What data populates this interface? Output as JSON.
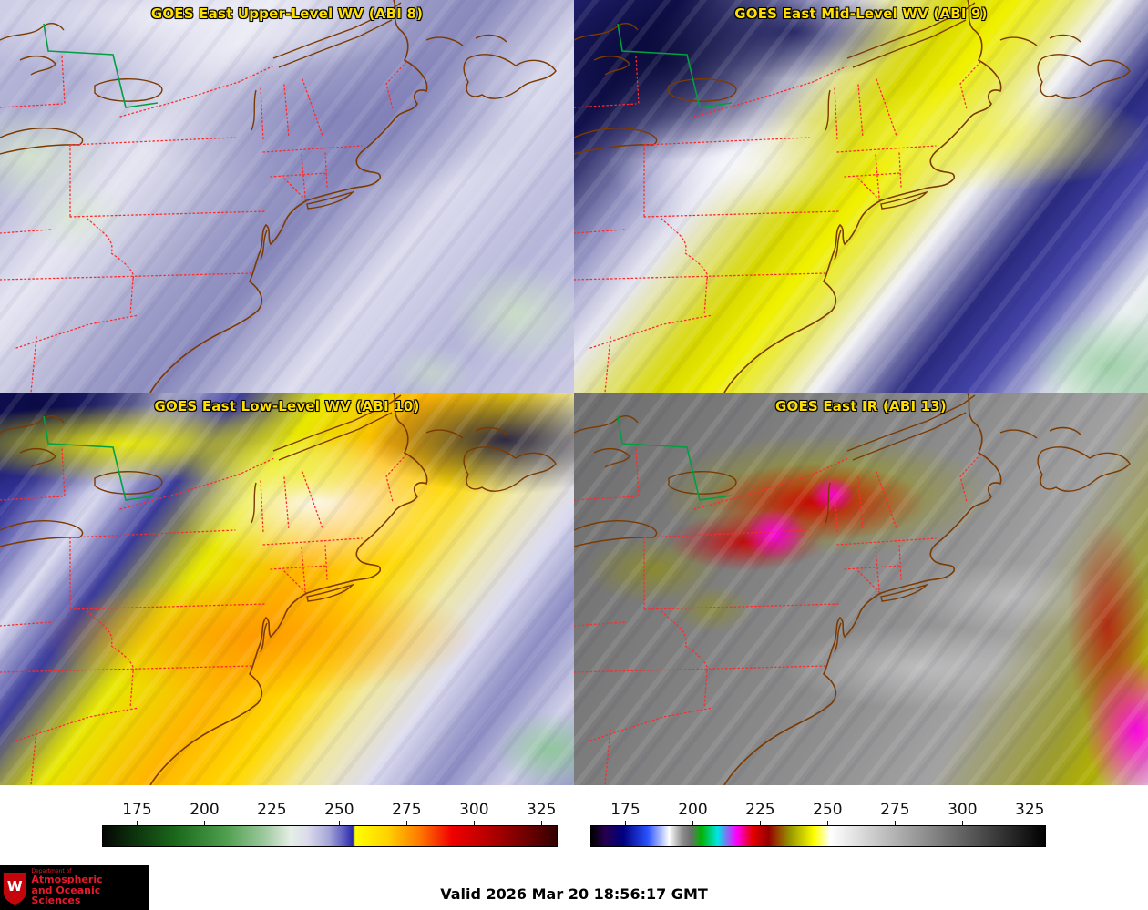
{
  "panels": [
    {
      "title": "GOES East Upper-Level WV (ABI 8)"
    },
    {
      "title": "GOES East Mid-Level WV (ABI 9)"
    },
    {
      "title": "GOES East Low-Level WV (ABI 10)"
    },
    {
      "title": "GOES East IR (ABI 13)"
    }
  ],
  "colorbars": [
    {
      "name": "water-vapor-enhancement",
      "range": [
        162,
        331
      ],
      "ticks": [
        175,
        200,
        225,
        250,
        275,
        300,
        325
      ],
      "stops": [
        {
          "v": 162,
          "c": "#050505"
        },
        {
          "v": 172,
          "c": "#0b2d0b"
        },
        {
          "v": 190,
          "c": "#1d6b1d"
        },
        {
          "v": 208,
          "c": "#4f9f4f"
        },
        {
          "v": 222,
          "c": "#9cc89c"
        },
        {
          "v": 232,
          "c": "#e6eee6"
        },
        {
          "v": 238,
          "c": "#dcdcec"
        },
        {
          "v": 246,
          "c": "#a8a8d8"
        },
        {
          "v": 252,
          "c": "#5858c0"
        },
        {
          "v": 255,
          "c": "#2828a8"
        },
        {
          "v": 256,
          "c": "#ffff00"
        },
        {
          "v": 268,
          "c": "#ffd200"
        },
        {
          "v": 280,
          "c": "#ff7800"
        },
        {
          "v": 292,
          "c": "#f00000"
        },
        {
          "v": 306,
          "c": "#b40000"
        },
        {
          "v": 320,
          "c": "#6e0000"
        },
        {
          "v": 331,
          "c": "#320000"
        }
      ]
    },
    {
      "name": "ir-enhancement",
      "range": [
        162,
        331
      ],
      "ticks": [
        175,
        200,
        225,
        250,
        275,
        300,
        325
      ],
      "stops": [
        {
          "v": 162,
          "c": "#000000"
        },
        {
          "v": 167,
          "c": "#26004d"
        },
        {
          "v": 174,
          "c": "#000080"
        },
        {
          "v": 183,
          "c": "#2a52ff"
        },
        {
          "v": 191,
          "c": "#ffffff"
        },
        {
          "v": 196,
          "c": "#8c8c8c"
        },
        {
          "v": 199,
          "c": "#6e6e6e"
        },
        {
          "v": 203,
          "c": "#00b400"
        },
        {
          "v": 209,
          "c": "#00e6e6"
        },
        {
          "v": 216,
          "c": "#ff00ff"
        },
        {
          "v": 222,
          "c": "#e60000"
        },
        {
          "v": 228,
          "c": "#960000"
        },
        {
          "v": 236,
          "c": "#969600"
        },
        {
          "v": 245,
          "c": "#ffff00"
        },
        {
          "v": 251,
          "c": "#ffffff"
        },
        {
          "v": 331,
          "c": "#000000"
        }
      ]
    }
  ],
  "footer": {
    "valid_time": "Valid 2026 Mar 20 18:56:17 GMT",
    "logo_dept": "Department of",
    "logo_line1": "Atmospheric",
    "logo_line2": "and Oceanic Sciences",
    "logo_letter": "W"
  },
  "colors": {
    "title_text": "#ffdf00",
    "state_border": "#ff2a2a",
    "coastline": "#7b3a00",
    "international_border_green": "#00a040",
    "logo_red": "#e8192c",
    "logo_background": "#000000"
  }
}
